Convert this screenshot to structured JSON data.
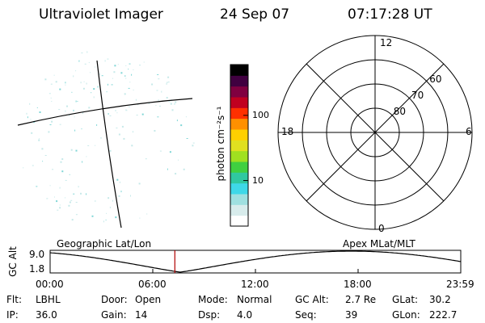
{
  "header": {
    "instrument": "Ultraviolet Imager",
    "date": "24 Sep 07",
    "time": "07:17:28 UT"
  },
  "colorbar": {
    "unit_label": "photon cm⁻²s⁻¹",
    "ticks": [
      {
        "value": 10,
        "label": "10"
      },
      {
        "value": 100,
        "label": "100"
      }
    ],
    "range": [
      2,
      600
    ],
    "colors": [
      "#ffffff",
      "#d8ecec",
      "#9fe0e0",
      "#3fd8e8",
      "#30c8a0",
      "#40d040",
      "#a0e020",
      "#e0e020",
      "#ffd000",
      "#ff9000",
      "#ff3000",
      "#c00020",
      "#800040",
      "#400040",
      "#000000"
    ]
  },
  "polar_plot": {
    "mlt_labels": [
      {
        "text": "12",
        "pos": "top"
      },
      {
        "text": "18",
        "pos": "left"
      },
      {
        "text": "6",
        "pos": "right"
      },
      {
        "text": "0",
        "pos": "bottom"
      }
    ],
    "mlat_labels": [
      {
        "text": "60",
        "lat": 60
      },
      {
        "text": "70",
        "lat": 70
      },
      {
        "text": "80",
        "lat": 80
      }
    ]
  },
  "panel_labels": {
    "left": "Geographic Lat/Lon",
    "right": "Apex MLat/MLT"
  },
  "altitude_plot": {
    "ylabel": "GC Alt",
    "yticks": [
      "9.0",
      "1.8"
    ],
    "xticks": [
      "00:00",
      "06:00",
      "12:00",
      "18:00",
      "23:59"
    ],
    "current_time_hours": 7.29
  },
  "status": {
    "row1": [
      {
        "key": "Flt:",
        "val": "LBHL"
      },
      {
        "key": "Door:",
        "val": "Open"
      },
      {
        "key": "Mode:",
        "val": "Normal"
      },
      {
        "key": "GC Alt:",
        "val": "2.7 Re"
      },
      {
        "key": "GLat:",
        "val": "30.2"
      }
    ],
    "row2": [
      {
        "key": "IP:",
        "val": "36.0"
      },
      {
        "key": "Gain:",
        "val": "14"
      },
      {
        "key": "Dsp:",
        "val": "4.0"
      },
      {
        "key": "Seq:",
        "val": "39"
      },
      {
        "key": "GLon:",
        "val": "222.7"
      }
    ]
  }
}
